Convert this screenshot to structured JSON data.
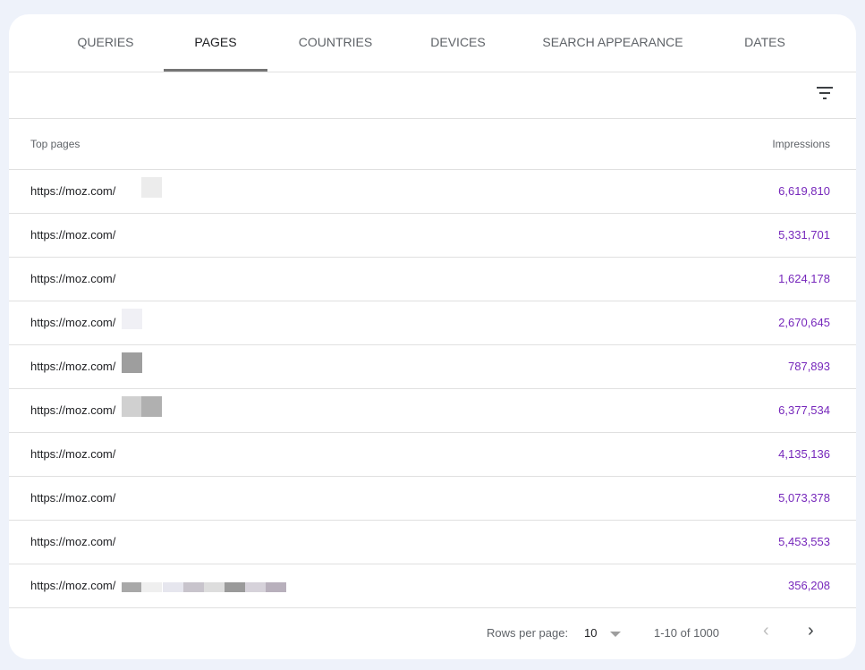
{
  "tabs": [
    {
      "label": "QUERIES",
      "active": false
    },
    {
      "label": "PAGES",
      "active": true
    },
    {
      "label": "COUNTRIES",
      "active": false
    },
    {
      "label": "DEVICES",
      "active": false
    },
    {
      "label": "SEARCH APPEARANCE",
      "active": false
    },
    {
      "label": "DATES",
      "active": false
    }
  ],
  "toolbar": {
    "filter_icon": "filter-list-icon"
  },
  "table": {
    "headers": {
      "page": "Top pages",
      "impressions": "Impressions"
    },
    "rows": [
      {
        "url": "https://moz.com/",
        "impressions": "6,619,810"
      },
      {
        "url": "https://moz.com/",
        "impressions": "5,331,701"
      },
      {
        "url": "https://moz.com/",
        "impressions": "1,624,178"
      },
      {
        "url": "https://moz.com/",
        "impressions": "2,670,645"
      },
      {
        "url": "https://moz.com/",
        "impressions": "787,893"
      },
      {
        "url": "https://moz.com/",
        "impressions": "6,377,534"
      },
      {
        "url": "https://moz.com/",
        "impressions": "4,135,136"
      },
      {
        "url": "https://moz.com/",
        "impressions": "5,073,378"
      },
      {
        "url": "https://moz.com/",
        "impressions": "5,453,553"
      },
      {
        "url": "https://moz.com/",
        "impressions": "356,208"
      }
    ]
  },
  "footer": {
    "rows_per_page_label": "Rows per page:",
    "rows_per_page_value": "10",
    "range": "1-10 of 1000",
    "prev": "‹",
    "next": "›"
  },
  "colors": {
    "impressions": "#7627bb",
    "background": "#eef2fa"
  }
}
